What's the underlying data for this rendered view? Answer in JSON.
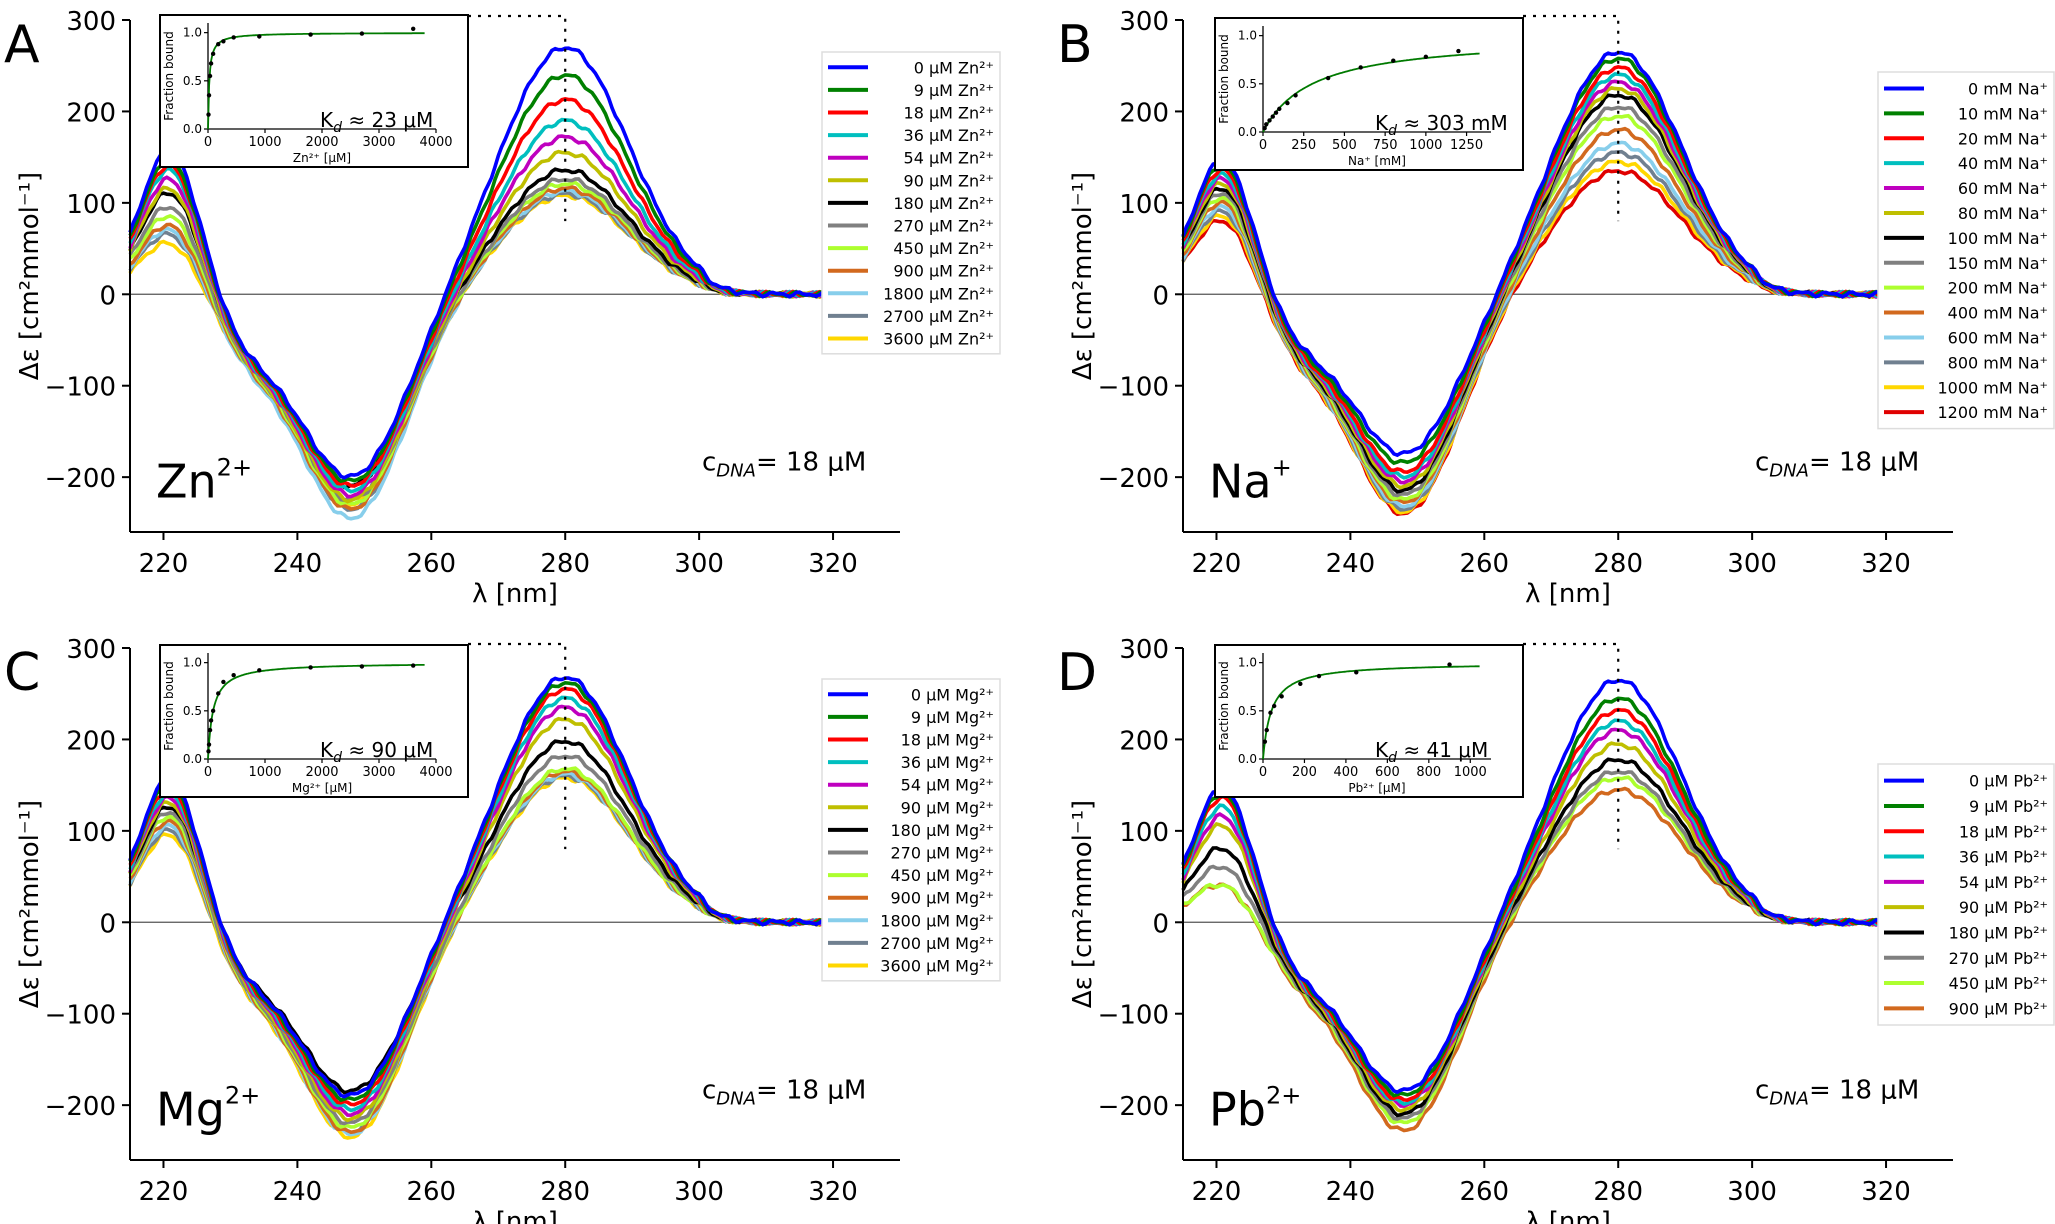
{
  "shared": {
    "x_label": "λ [nm]",
    "y_label": "Δε  [cm²mmol⁻¹]",
    "x_ticks": [
      220,
      240,
      260,
      280,
      300,
      320
    ],
    "y_ticks": [
      -200,
      -100,
      0,
      100,
      200,
      300
    ],
    "xlim": [
      215,
      330
    ],
    "ylim": [
      -260,
      300
    ],
    "inset_ylabel": "Fraction bound",
    "marker_wavelength": 280,
    "series_colors": [
      "#0000ff",
      "#008000",
      "#ff0000",
      "#00bfbf",
      "#bf00bf",
      "#bfbf00",
      "#000000",
      "#808080",
      "#adff2f",
      "#d2691e",
      "#87ceeb",
      "#708090",
      "#ffd700",
      "#e00000"
    ]
  },
  "chart_data": [
    {
      "type": "line",
      "panel_letter": "A",
      "ion_label": "Zn",
      "ion_charge": "2+",
      "conc_label": "c",
      "conc_sub": "DNA",
      "conc_value": "=  18 μM",
      "kd_label": "K",
      "kd_sub": "d",
      "kd_value": " ≈   23 μM",
      "legend": [
        "0 μM Zn²⁺",
        "9 μM Zn²⁺",
        "18 μM Zn²⁺",
        "36 μM Zn²⁺",
        "54 μM Zn²⁺",
        "90 μM Zn²⁺",
        "180 μM Zn²⁺",
        "270 μM Zn²⁺",
        "450 μM Zn²⁺",
        "900 μM Zn²⁺",
        "1800 μM Zn²⁺",
        "2700 μM Zn²⁺",
        "3600 μM Zn²⁺"
      ],
      "series_color_index": [
        0,
        1,
        2,
        3,
        4,
        5,
        6,
        7,
        8,
        9,
        10,
        11,
        12
      ],
      "peak_values": [
        270,
        240,
        213,
        190,
        172,
        155,
        136,
        126,
        121,
        116,
        113,
        110,
        108
      ],
      "trough_values": [
        -200,
        -205,
        -210,
        -215,
        -220,
        -225,
        -210,
        -225,
        -230,
        -235,
        -245,
        -235,
        -230
      ],
      "left_values": [
        160,
        150,
        145,
        140,
        130,
        120,
        115,
        100,
        90,
        80,
        75,
        70,
        60
      ],
      "inset": {
        "xlabel": "Zn²⁺ [μM]",
        "x_ticks": [
          0,
          1000,
          2000,
          3000,
          4000
        ],
        "x_tick_labels": [
          "0",
          "1000",
          "2000",
          "3000",
          "4000"
        ],
        "xlim": [
          0,
          4000
        ],
        "y_ticks": [
          0,
          0.5,
          1
        ],
        "y_tick_labels": [
          "0.0",
          "0.5",
          "1.0"
        ],
        "ylim": [
          0,
          1.1
        ],
        "kd": 23,
        "points_x": [
          9,
          18,
          36,
          54,
          90,
          180,
          270,
          450,
          900,
          1800,
          2700,
          3600
        ],
        "points_y": [
          0.15,
          0.35,
          0.55,
          0.68,
          0.78,
          0.88,
          0.91,
          0.95,
          0.96,
          0.98,
          0.99,
          1.04
        ]
      }
    },
    {
      "type": "line",
      "panel_letter": "B",
      "ion_label": "Na",
      "ion_charge": "+",
      "conc_label": "c",
      "conc_sub": "DNA",
      "conc_value": "=  18 μM",
      "kd_label": "K",
      "kd_sub": "d",
      "kd_value": " ≈  303 mM",
      "legend": [
        "0 mM Na⁺",
        "10 mM Na⁺",
        "20 mM Na⁺",
        "40 mM Na⁺",
        "60 mM Na⁺",
        "80 mM Na⁺",
        "100 mM Na⁺",
        "150 mM Na⁺",
        "200 mM Na⁺",
        "400 mM Na⁺",
        "600 mM Na⁺",
        "800 mM Na⁺",
        "1000 mM Na⁺",
        "1200 mM Na⁺"
      ],
      "series_color_index": [
        0,
        1,
        2,
        3,
        4,
        5,
        6,
        7,
        8,
        9,
        10,
        11,
        12,
        13
      ],
      "peak_values": [
        265,
        258,
        248,
        240,
        232,
        225,
        218,
        205,
        195,
        180,
        165,
        155,
        145,
        135
      ],
      "trough_values": [
        -175,
        -185,
        -195,
        -200,
        -205,
        -210,
        -215,
        -220,
        -225,
        -228,
        -232,
        -235,
        -238,
        -240
      ],
      "left_values": [
        150,
        145,
        140,
        135,
        130,
        125,
        120,
        115,
        110,
        105,
        100,
        95,
        90,
        85
      ],
      "inset": {
        "xlabel": "Na⁺ [mM]",
        "x_ticks": [
          0,
          250,
          500,
          750,
          1000,
          1250
        ],
        "x_tick_labels": [
          "0",
          "250",
          "500",
          "750",
          "1000",
          "1250"
        ],
        "xlim": [
          0,
          1400
        ],
        "y_ticks": [
          0,
          0.5,
          1
        ],
        "y_tick_labels": [
          "0.0",
          "0.5",
          "1.0"
        ],
        "ylim": [
          0,
          1.1
        ],
        "kd": 303,
        "points_x": [
          10,
          20,
          40,
          60,
          80,
          100,
          150,
          200,
          400,
          600,
          800,
          1000,
          1200
        ],
        "points_y": [
          0.04,
          0.08,
          0.12,
          0.16,
          0.2,
          0.24,
          0.3,
          0.38,
          0.56,
          0.67,
          0.74,
          0.78,
          0.84
        ]
      }
    },
    {
      "type": "line",
      "panel_letter": "C",
      "ion_label": "Mg",
      "ion_charge": "2+",
      "conc_label": "c",
      "conc_sub": "DNA",
      "conc_value": "=  18 μM",
      "kd_label": "K",
      "kd_sub": "d",
      "kd_value": " ≈   90 μM",
      "legend": [
        "0 μM Mg²⁺",
        "9 μM Mg²⁺",
        "18 μM Mg²⁺",
        "36 μM Mg²⁺",
        "54 μM Mg²⁺",
        "90 μM Mg²⁺",
        "180 μM Mg²⁺",
        "270 μM Mg²⁺",
        "450 μM Mg²⁺",
        "900 μM Mg²⁺",
        "1800 μM Mg²⁺",
        "2700 μM Mg²⁺",
        "3600 μM Mg²⁺"
      ],
      "series_color_index": [
        0,
        1,
        2,
        3,
        4,
        5,
        6,
        7,
        8,
        9,
        10,
        11,
        12
      ],
      "peak_values": [
        268,
        262,
        255,
        245,
        235,
        222,
        198,
        182,
        168,
        165,
        162,
        160,
        158
      ],
      "trough_values": [
        -190,
        -195,
        -200,
        -205,
        -210,
        -215,
        -185,
        -220,
        -225,
        -230,
        -232,
        -230,
        -235
      ],
      "left_values": [
        160,
        155,
        150,
        145,
        140,
        135,
        130,
        125,
        120,
        115,
        110,
        105,
        100
      ],
      "inset": {
        "xlabel": "Mg²⁺ [μM]",
        "x_ticks": [
          0,
          1000,
          2000,
          3000,
          4000
        ],
        "x_tick_labels": [
          "0",
          "1000",
          "2000",
          "3000",
          "4000"
        ],
        "xlim": [
          0,
          4000
        ],
        "y_ticks": [
          0,
          0.5,
          1
        ],
        "y_tick_labels": [
          "0.0",
          "0.5",
          "1.0"
        ],
        "ylim": [
          0,
          1.1
        ],
        "kd": 90,
        "points_x": [
          9,
          18,
          36,
          54,
          90,
          180,
          270,
          450,
          900,
          1800,
          2700,
          3600
        ],
        "points_y": [
          0.08,
          0.15,
          0.3,
          0.4,
          0.5,
          0.68,
          0.8,
          0.87,
          0.92,
          0.95,
          0.96,
          0.97
        ]
      }
    },
    {
      "type": "line",
      "panel_letter": "D",
      "ion_label": "Pb",
      "ion_charge": "2+",
      "conc_label": "c",
      "conc_sub": "DNA",
      "conc_value": "=  18 μM",
      "kd_label": "K",
      "kd_sub": "d",
      "kd_value": " ≈   41 μM",
      "legend": [
        "0 μM Pb²⁺",
        "9 μM Pb²⁺",
        "18 μM Pb²⁺",
        "36 μM Pb²⁺",
        "54 μM Pb²⁺",
        "90 μM Pb²⁺",
        "180 μM Pb²⁺",
        "270 μM Pb²⁺",
        "450 μM Pb²⁺",
        "900 μM Pb²⁺"
      ],
      "series_color_index": [
        0,
        1,
        2,
        3,
        4,
        5,
        6,
        7,
        8,
        9
      ],
      "peak_values": [
        265,
        245,
        232,
        220,
        210,
        195,
        178,
        165,
        158,
        145
      ],
      "trough_values": [
        -185,
        -190,
        -195,
        -198,
        -200,
        -205,
        -210,
        -215,
        -220,
        -228
      ],
      "left_values": [
        150,
        145,
        140,
        130,
        120,
        110,
        85,
        65,
        45,
        45
      ],
      "inset": {
        "xlabel": "Pb²⁺ [μM]",
        "x_ticks": [
          0,
          200,
          400,
          600,
          800,
          1000
        ],
        "x_tick_labels": [
          "0",
          "200",
          "400",
          "600",
          "800",
          "1000"
        ],
        "xlim": [
          0,
          1100
        ],
        "y_ticks": [
          0,
          0.5,
          1
        ],
        "y_tick_labels": [
          "0.0",
          "0.5",
          "1.0"
        ],
        "ylim": [
          0,
          1.1
        ],
        "kd": 41,
        "points_x": [
          9,
          18,
          36,
          54,
          90,
          180,
          270,
          450,
          900
        ],
        "points_y": [
          0.18,
          0.3,
          0.48,
          0.55,
          0.65,
          0.78,
          0.86,
          0.9,
          0.98
        ]
      }
    }
  ]
}
